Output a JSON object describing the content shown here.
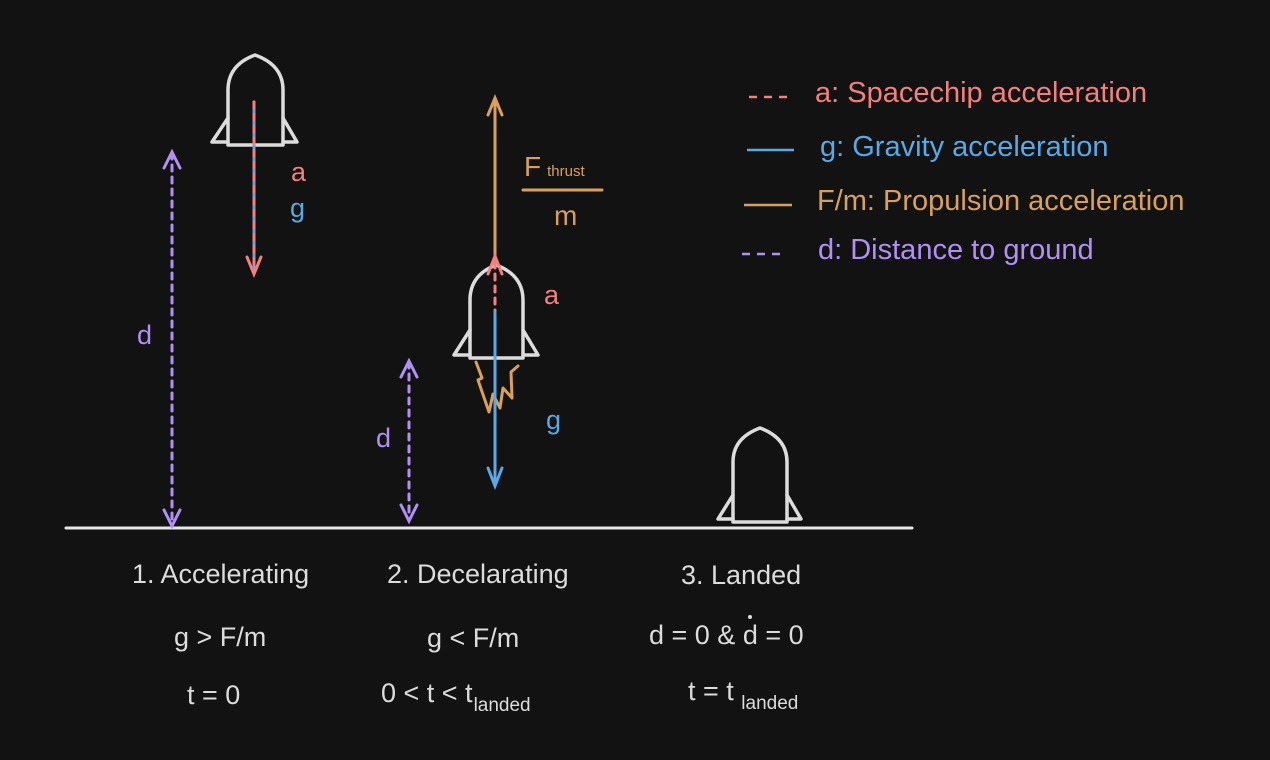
{
  "colors": {
    "background": "#121212",
    "rocket": "#dcdcdc",
    "ground": "#e6e6e6",
    "acceleration": "#f47f7f",
    "gravity": "#5aa8e6",
    "propulsion": "#d9a05c",
    "distance": "#b18ff5",
    "caption": "#dcdcdc"
  },
  "legend": [
    {
      "icon": "dashed-red-line-icon",
      "label": "a: Spacechip acceleration"
    },
    {
      "icon": "solid-blue-line-icon",
      "label": "g: Gravity acceleration"
    },
    {
      "icon": "solid-orange-line-icon",
      "label": "F/m: Propulsion acceleration"
    },
    {
      "icon": "dashed-purple-line-icon",
      "label": "d: Distance to ground"
    }
  ],
  "scene1": {
    "a_label": "a",
    "g_label": "g",
    "d_label": "d",
    "title": "1. Accelerating",
    "condition": "g > F/m",
    "time": "t = 0"
  },
  "scene2": {
    "f_label": "F",
    "f_sub": "thrust",
    "m_label": "m",
    "a_label": "a",
    "g_label": "g",
    "d_label": "d",
    "title": "2. Decelarating",
    "condition": "g < F/m",
    "time_prefix": "0 < t < t",
    "time_sub": "landed"
  },
  "scene3": {
    "title": "3. Landed",
    "cond_prefix": "d = 0 & ",
    "cond_ddot": "d",
    "cond_suffix": " = 0",
    "time_prefix": "t = t ",
    "time_sub": "landed"
  }
}
